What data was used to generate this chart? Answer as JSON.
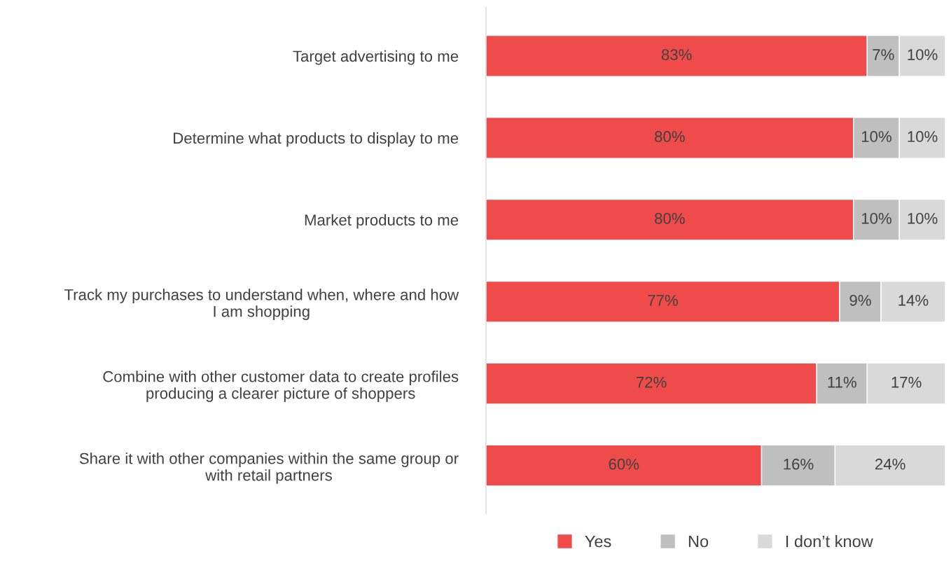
{
  "chart_data": {
    "type": "bar",
    "orientation": "horizontal",
    "stacked": true,
    "legend": "bottom",
    "categories": [
      "Target advertising to me",
      "Determine what products to display to me",
      "Market products to me",
      "Track my purchases to understand when, where and how\nI am shopping",
      "Combine with other customer data to create profiles\nproducing a clearer picture of shoppers",
      "Share it with other companies within the same group or\nwith retail partners"
    ],
    "series": [
      {
        "name": "Yes",
        "color": "#ef4b4b",
        "values": [
          83,
          80,
          80,
          77,
          72,
          60
        ],
        "value_labels": [
          "83%",
          "80%",
          "80%",
          "77%",
          "72%",
          "60%"
        ]
      },
      {
        "name": "No",
        "color": "#bfbfbf",
        "values": [
          7,
          10,
          10,
          9,
          11,
          16
        ],
        "value_labels": [
          "7%",
          "10%",
          "10%",
          "9%",
          "11%",
          "16%"
        ]
      },
      {
        "name": "I don’t know",
        "color": "#d9d9d9",
        "values": [
          10,
          10,
          10,
          14,
          17,
          24
        ],
        "value_labels": [
          "10%",
          "10%",
          "10%",
          "14%",
          "17%",
          "24%"
        ]
      }
    ]
  }
}
